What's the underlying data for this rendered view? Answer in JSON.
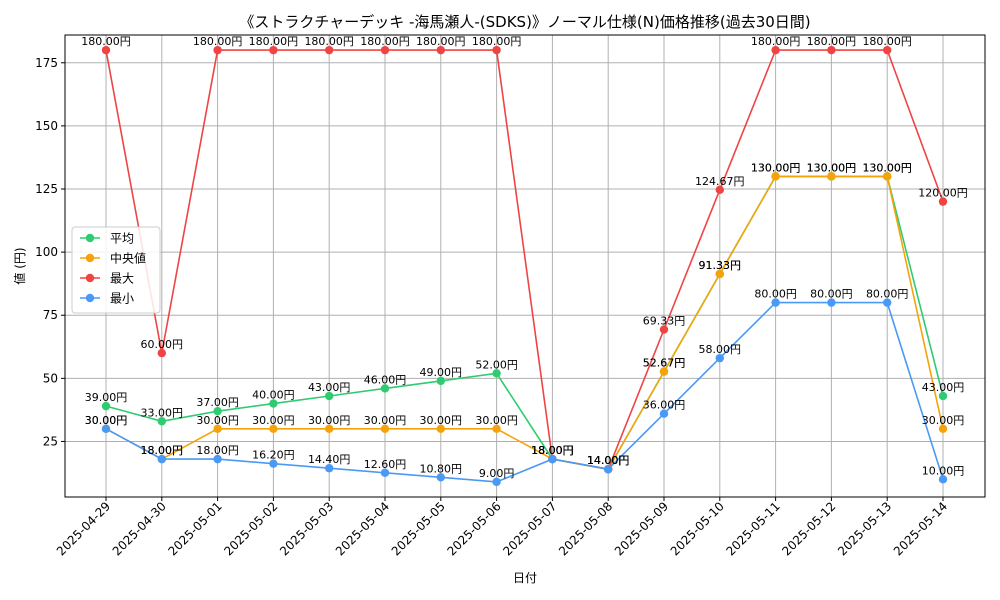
{
  "chart_data": {
    "type": "line",
    "title": "《ストラクチャーデッキ -海馬瀬人-(SDKS)》ノーマル仕様(N)価格推移(過去30日間)",
    "xlabel": "日付",
    "ylabel": "値 (円)",
    "unit_suffix": "円",
    "ylim": [
      3,
      186
    ],
    "yticks": [
      25,
      50,
      75,
      100,
      125,
      150,
      175
    ],
    "grid": true,
    "legend_position": "center-left",
    "categories": [
      "2025-04-29",
      "2025-04-30",
      "2025-05-01",
      "2025-05-02",
      "2025-05-03",
      "2025-05-04",
      "2025-05-05",
      "2025-05-06",
      "2025-05-07",
      "2025-05-08",
      "2025-05-09",
      "2025-05-10",
      "2025-05-11",
      "2025-05-12",
      "2025-05-13",
      "2025-05-14"
    ],
    "series": [
      {
        "name": "平均",
        "key": "average",
        "color": "#2ecc71",
        "values": [
          39,
          33,
          37,
          40,
          43,
          46,
          49,
          52,
          18,
          14,
          52.67,
          91.33,
          130,
          130,
          130,
          43
        ]
      },
      {
        "name": "中央値",
        "key": "median",
        "color": "#f5a30a",
        "values": [
          30,
          18,
          30,
          30,
          30,
          30,
          30,
          30,
          18,
          14,
          52.67,
          91.33,
          130,
          130,
          130,
          30
        ]
      },
      {
        "name": "最大",
        "key": "max",
        "color": "#ef4444",
        "values": [
          180,
          60,
          180,
          180,
          180,
          180,
          180,
          180,
          18,
          14,
          69.33,
          124.67,
          180,
          180,
          180,
          120
        ]
      },
      {
        "name": "最小",
        "key": "min",
        "color": "#4a9af5",
        "values": [
          30,
          18,
          18,
          16.2,
          14.4,
          12.6,
          10.8,
          9,
          18,
          14,
          36,
          58,
          80,
          80,
          80,
          10
        ]
      }
    ]
  }
}
